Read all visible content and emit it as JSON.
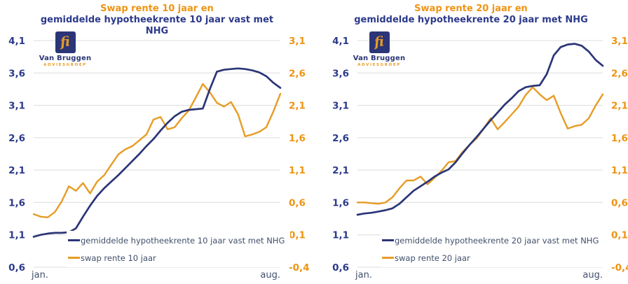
{
  "colors": {
    "navy_line": "#2B3577",
    "orange_line": "#E79C24",
    "navy_label": "#2C3A8A",
    "orange_label": "#EE9413",
    "grid": "#DCDCDC",
    "text": "#41506B"
  },
  "logo": {
    "name": "Van Bruggen",
    "sub": "ADVIESGROEP",
    "monogram": "fi"
  },
  "chart_data": [
    {
      "type": "line",
      "title_orange": "Swap rente 10 jaar en",
      "title_navy": "gemiddelde hypotheekrente 10 jaar vast met NHG",
      "x_start_label": "jan.",
      "x_end_label": "aug.",
      "grid": "horizontal",
      "legend_position": "bottom-left-inside",
      "left_axis": {
        "min": 0.6,
        "max": 4.1,
        "ticks": [
          "4,1",
          "3,6",
          "3,1",
          "2,6",
          "2,1",
          "1,6",
          "1,1",
          "0,6"
        ]
      },
      "right_axis": {
        "min": -0.4,
        "max": 3.1,
        "ticks": [
          "3,1",
          "2,6",
          "2,1",
          "1,6",
          "1,1",
          "0,6",
          "0,1",
          "-0,4"
        ]
      },
      "series": [
        {
          "name": "gemiddelde hypotheekrente 10 jaar vast met NHG",
          "axis": "left",
          "color": "#2B3577",
          "values": [
            1.07,
            1.1,
            1.12,
            1.13,
            1.13,
            1.14,
            1.2,
            1.38,
            1.55,
            1.7,
            1.82,
            1.92,
            2.02,
            2.13,
            2.24,
            2.35,
            2.47,
            2.58,
            2.71,
            2.83,
            2.93,
            3.0,
            3.03,
            3.04,
            3.05,
            3.35,
            3.62,
            3.65,
            3.66,
            3.67,
            3.66,
            3.64,
            3.61,
            3.55,
            3.45,
            3.37
          ]
        },
        {
          "name": "swap rente 10 jaar",
          "axis": "right",
          "color": "#E79C24",
          "values": [
            0.42,
            0.38,
            0.37,
            0.45,
            0.62,
            0.85,
            0.78,
            0.9,
            0.74,
            0.92,
            1.02,
            1.18,
            1.34,
            1.42,
            1.47,
            1.56,
            1.65,
            1.88,
            1.92,
            1.73,
            1.76,
            1.9,
            2.02,
            2.22,
            2.43,
            2.3,
            2.14,
            2.08,
            2.15,
            1.96,
            1.62,
            1.65,
            1.69,
            1.76,
            2.0,
            2.28
          ]
        }
      ]
    },
    {
      "type": "line",
      "title_orange": "Swap rente 20 jaar en",
      "title_navy": "gemiddelde hypotheekrente 20 jaar met NHG",
      "x_start_label": "jan.",
      "x_end_label": "aug.",
      "grid": "horizontal",
      "legend_position": "bottom-left-inside",
      "left_axis": {
        "min": 0.6,
        "max": 4.1,
        "ticks": [
          "4,1",
          "3,6",
          "3,1",
          "2,6",
          "2,1",
          "1,6",
          "1,1",
          "0,6"
        ]
      },
      "right_axis": {
        "min": -0.4,
        "max": 3.1,
        "ticks": [
          "3,1",
          "2,6",
          "2,1",
          "1,6",
          "1,1",
          "0,6",
          "0,1",
          "-0,4"
        ]
      },
      "series": [
        {
          "name": "gemiddelde hypotheekrente 20 jaar vast met NHG",
          "axis": "left",
          "color": "#2B3577",
          "values": [
            1.41,
            1.43,
            1.44,
            1.46,
            1.48,
            1.51,
            1.58,
            1.68,
            1.78,
            1.85,
            1.92,
            2.0,
            2.06,
            2.11,
            2.22,
            2.36,
            2.49,
            2.61,
            2.74,
            2.87,
            2.99,
            3.11,
            3.21,
            3.32,
            3.38,
            3.4,
            3.41,
            3.58,
            3.87,
            4.0,
            4.04,
            4.05,
            4.02,
            3.93,
            3.8,
            3.71
          ]
        },
        {
          "name": "swap rente 20 jaar",
          "axis": "right",
          "color": "#E79C24",
          "values": [
            0.6,
            0.6,
            0.59,
            0.58,
            0.6,
            0.68,
            0.82,
            0.94,
            0.94,
            1.0,
            0.88,
            0.98,
            1.09,
            1.22,
            1.24,
            1.38,
            1.49,
            1.59,
            1.74,
            1.9,
            1.73,
            1.84,
            1.96,
            2.08,
            2.26,
            2.38,
            2.27,
            2.18,
            2.25,
            1.98,
            1.74,
            1.78,
            1.8,
            1.9,
            2.1,
            2.27
          ]
        }
      ]
    }
  ]
}
